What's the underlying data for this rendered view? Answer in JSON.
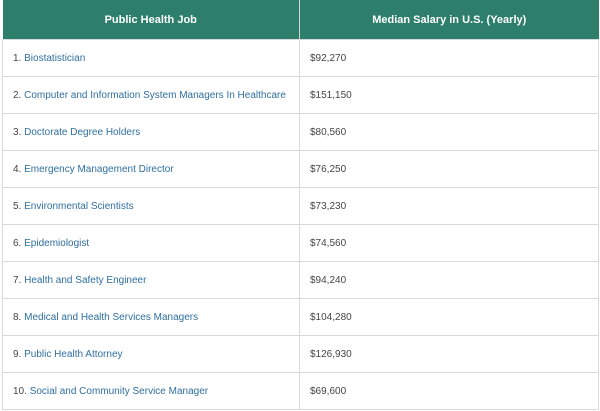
{
  "table": {
    "headers": [
      "Public Health Job",
      "Median Salary in U.S. (Yearly)"
    ],
    "rows": [
      {
        "num": "1.",
        "job": "Biostatistician",
        "salary": "$92,270"
      },
      {
        "num": "2.",
        "job": "Computer and Information System Managers In Healthcare",
        "salary": "$151,150"
      },
      {
        "num": "3.",
        "job": "Doctorate Degree Holders",
        "salary": "$80,560"
      },
      {
        "num": "4.",
        "job": "Emergency Management Director",
        "salary": "$76,250"
      },
      {
        "num": "5.",
        "job": "Environmental Scientists",
        "salary": "$73,230"
      },
      {
        "num": "6.",
        "job": "Epidemiologist",
        "salary": "$74,560"
      },
      {
        "num": "7.",
        "job": "Health and Safety Engineer",
        "salary": "$94,240"
      },
      {
        "num": "8.",
        "job": "Medical and Health Services Managers",
        "salary": "$104,280"
      },
      {
        "num": "9.",
        "job": "Public Health Attorney",
        "salary": "$126,930"
      },
      {
        "num": "10.",
        "job": "Social and Community Service Manager",
        "salary": "$69,600"
      }
    ]
  },
  "colors": {
    "header_bg": "#2d7f6b",
    "link": "#2f6f9f"
  }
}
